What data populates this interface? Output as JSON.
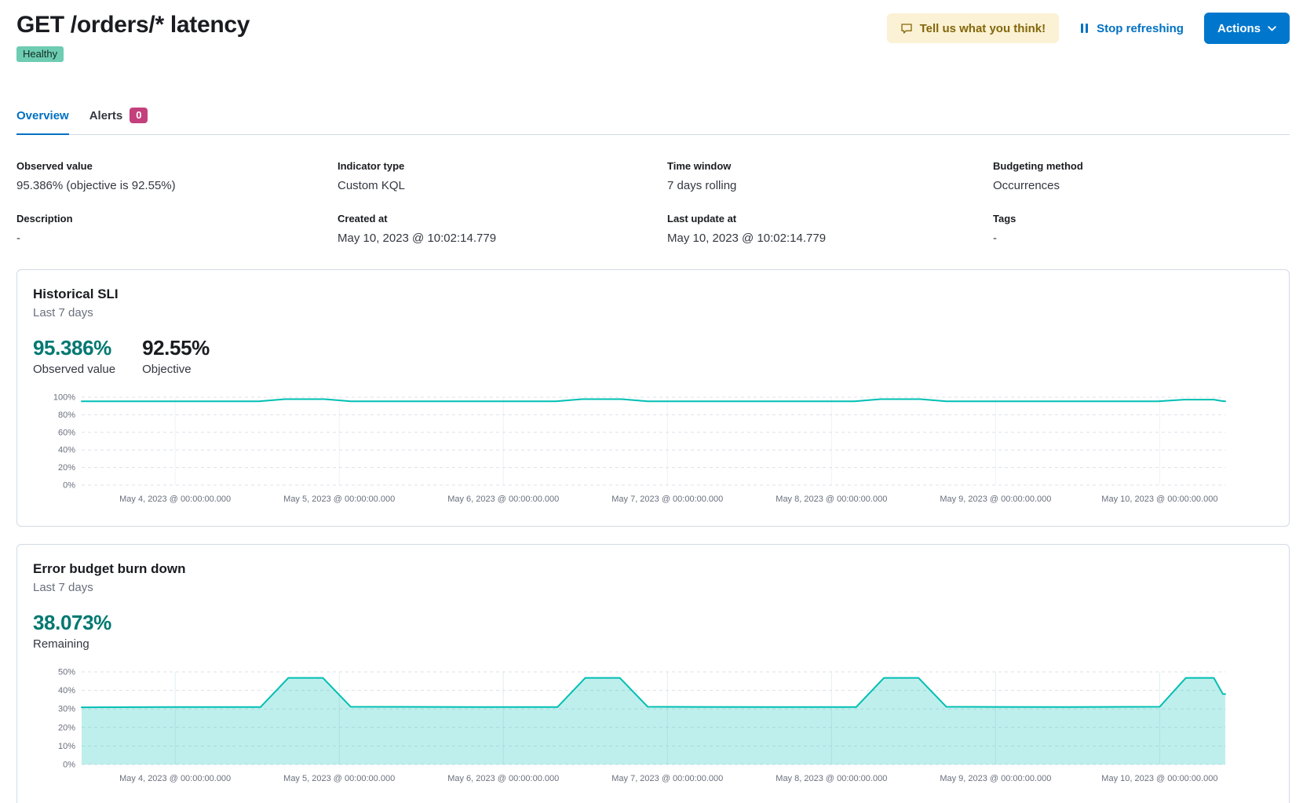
{
  "header": {
    "title": "GET /orders/* latency",
    "status_badge": "Healthy",
    "feedback_button": "Tell us what you think!",
    "stop_refreshing": "Stop refreshing",
    "actions_button": "Actions"
  },
  "tabs": [
    {
      "label": "Overview",
      "active": true
    },
    {
      "label": "Alerts",
      "badge": "0"
    }
  ],
  "overview": {
    "fields": [
      {
        "label": "Observed value",
        "value": "95.386% (objective is 92.55%)"
      },
      {
        "label": "Indicator type",
        "value": "Custom KQL"
      },
      {
        "label": "Time window",
        "value": "7 days rolling"
      },
      {
        "label": "Budgeting method",
        "value": "Occurrences"
      },
      {
        "label": "Description",
        "value": "-"
      },
      {
        "label": "Created at",
        "value": "May 10, 2023 @ 10:02:14.779"
      },
      {
        "label": "Last update at",
        "value": "May 10, 2023 @ 10:02:14.779"
      },
      {
        "label": "Tags",
        "value": "-"
      }
    ]
  },
  "panels": {
    "historical_sli": {
      "title": "Historical SLI",
      "subtitle": "Last 7 days",
      "stats": [
        {
          "value": "95.386%",
          "label": "Observed value"
        },
        {
          "value": "92.55%",
          "label": "Objective"
        }
      ]
    },
    "error_budget": {
      "title": "Error budget burn down",
      "subtitle": "Last 7 days",
      "stats": [
        {
          "value": "38.073%",
          "label": "Remaining"
        }
      ]
    }
  },
  "colors": {
    "primary_blue": "#0071C2",
    "button_blue": "#0077CC",
    "healthy_badge": "#6DCCB1",
    "alerts_badge": "#C4407C",
    "feedback_bg": "#FBF1D4",
    "feedback_text": "#83670B",
    "chart_teal": "#00BFB3",
    "stat_teal_text": "#007871",
    "panel_border": "#D3DAE6"
  },
  "chart_data": [
    {
      "type": "line",
      "title": "Historical SLI",
      "xlabel": "",
      "ylabel": "",
      "x_domain": [
        0,
        6.97
      ],
      "ylim": [
        0,
        100
      ],
      "grid": true,
      "legend": "none",
      "y_ticks": [
        0,
        20,
        40,
        60,
        80,
        100
      ],
      "y_tick_labels": [
        "0%",
        "20%",
        "40%",
        "60%",
        "80%",
        "100%"
      ],
      "x_tick_positions": [
        0.57,
        1.57,
        2.57,
        3.57,
        4.57,
        5.57,
        6.57
      ],
      "x_tick_labels": [
        "May 4, 2023 @ 00:00:00.000",
        "May 5, 2023 @ 00:00:00.000",
        "May 6, 2023 @ 00:00:00.000",
        "May 7, 2023 @ 00:00:00.000",
        "May 8, 2023 @ 00:00:00.000",
        "May 9, 2023 @ 00:00:00.000",
        "May 10, 2023 @ 00:00:00.000"
      ],
      "colors": {
        "line": "#00BFB3",
        "vgrid": "#EEF1F6",
        "hgrid": "#DCE1EA"
      },
      "series": [
        {
          "name": "Observed value",
          "points": [
            [
              0,
              95.4
            ],
            [
              1.08,
              95.4
            ],
            [
              1.24,
              97.8
            ],
            [
              1.48,
              97.8
            ],
            [
              1.64,
              95.4
            ],
            [
              2.89,
              95.4
            ],
            [
              3.05,
              97.8
            ],
            [
              3.29,
              97.8
            ],
            [
              3.45,
              95.4
            ],
            [
              4.71,
              95.4
            ],
            [
              4.87,
              97.8
            ],
            [
              5.11,
              97.8
            ],
            [
              5.27,
              95.4
            ],
            [
              6.56,
              95.4
            ],
            [
              6.72,
              97.2
            ],
            [
              6.9,
              97.2
            ],
            [
              6.95,
              95.6
            ],
            [
              6.97,
              95.4
            ]
          ]
        }
      ]
    },
    {
      "type": "area",
      "title": "Error budget burn down",
      "xlabel": "",
      "ylabel": "",
      "x_domain": [
        0,
        6.97
      ],
      "ylim": [
        0,
        50
      ],
      "grid": true,
      "legend": "none",
      "y_ticks": [
        0,
        10,
        20,
        30,
        40,
        50
      ],
      "y_tick_labels": [
        "0%",
        "10%",
        "20%",
        "30%",
        "40%",
        "50%"
      ],
      "x_tick_positions": [
        0.57,
        1.57,
        2.57,
        3.57,
        4.57,
        5.57,
        6.57
      ],
      "x_tick_labels": [
        "May 4, 2023 @ 00:00:00.000",
        "May 5, 2023 @ 00:00:00.000",
        "May 6, 2023 @ 00:00:00.000",
        "May 7, 2023 @ 00:00:00.000",
        "May 8, 2023 @ 00:00:00.000",
        "May 9, 2023 @ 00:00:00.000",
        "May 10, 2023 @ 00:00:00.000"
      ],
      "colors": {
        "line": "#00BFB3",
        "fill": "rgba(0,191,179,0.25)",
        "vgrid": "#E2EEF0",
        "hgrid": "#DCE1EA"
      },
      "series": [
        {
          "name": "Remaining",
          "points": [
            [
              0,
              30.9
            ],
            [
              0.5,
              31
            ],
            [
              1.09,
              31
            ],
            [
              1.26,
              46.8
            ],
            [
              1.47,
              46.8
            ],
            [
              1.64,
              31.2
            ],
            [
              2.4,
              31
            ],
            [
              2.9,
              31
            ],
            [
              3.07,
              46.8
            ],
            [
              3.28,
              46.8
            ],
            [
              3.45,
              31.2
            ],
            [
              4.2,
              31
            ],
            [
              4.72,
              31
            ],
            [
              4.89,
              46.8
            ],
            [
              5.1,
              46.8
            ],
            [
              5.27,
              31.2
            ],
            [
              6.0,
              31
            ],
            [
              6.57,
              31.2
            ],
            [
              6.73,
              46.8
            ],
            [
              6.9,
              46.8
            ],
            [
              6.955,
              38.1
            ],
            [
              6.97,
              38.07
            ]
          ]
        }
      ]
    }
  ]
}
